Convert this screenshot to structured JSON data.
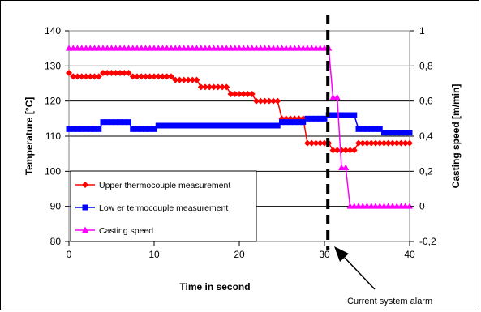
{
  "chart_data": {
    "type": "line",
    "title": "",
    "xlabel": "Time in second",
    "ylabel": "Temperature [°C]",
    "y2label": "Casting speed [m/min]",
    "xlim": [
      0,
      40
    ],
    "ylim": [
      80,
      140
    ],
    "y2lim": [
      -0.2,
      1
    ],
    "xticks": [
      "0",
      "10",
      "20",
      "30",
      "40"
    ],
    "yticks": [
      "80",
      "90",
      "100",
      "110",
      "120",
      "130",
      "140"
    ],
    "y2ticks": [
      "-0,2",
      "0",
      "0,2",
      "0,4",
      "0,6",
      "0,8",
      "1"
    ],
    "grid": "horizontal",
    "legend_position": "lower-left",
    "series": [
      {
        "name": "Upper thermocouple measurement",
        "axis": "left",
        "color": "#ff0000",
        "marker": "diamond",
        "x": [
          0,
          0.5,
          1,
          1.5,
          2,
          2.5,
          3,
          3.5,
          4,
          4.5,
          5,
          5.5,
          6,
          6.5,
          7,
          7.5,
          8,
          8.5,
          9,
          9.5,
          10,
          10.5,
          11,
          11.5,
          12,
          12.5,
          13,
          13.5,
          14,
          14.5,
          15,
          15.5,
          16,
          16.5,
          17,
          17.5,
          18,
          18.5,
          19,
          19.5,
          20,
          20.5,
          21,
          21.5,
          22,
          22.5,
          23,
          23.5,
          24,
          24.5,
          25,
          25.5,
          26,
          26.5,
          27,
          27.5,
          28,
          28.5,
          29,
          29.5,
          30,
          30.5,
          31,
          31.5,
          32,
          32.5,
          33,
          33.5,
          34,
          34.5,
          35,
          35.5,
          36,
          36.5,
          37,
          37.5,
          38,
          38.5,
          39,
          39.5,
          40
        ],
        "y": [
          128,
          127,
          127,
          127,
          127,
          127,
          127,
          127,
          128,
          128,
          128,
          128,
          128,
          128,
          128,
          127,
          127,
          127,
          127,
          127,
          127,
          127,
          127,
          127,
          127,
          126,
          126,
          126,
          126,
          126,
          126,
          124,
          124,
          124,
          124,
          124,
          124,
          124,
          122,
          122,
          122,
          122,
          122,
          122,
          120,
          120,
          120,
          120,
          120,
          120,
          115,
          115,
          115,
          115,
          115,
          115,
          108,
          108,
          108,
          108,
          108,
          108,
          106,
          106,
          106,
          106,
          106,
          106,
          108,
          108,
          108,
          108,
          108,
          108,
          108,
          108,
          108,
          108,
          108,
          108,
          108
        ]
      },
      {
        "name": "Low er termocouple measurement",
        "axis": "left",
        "color": "#0000ff",
        "marker": "square",
        "x": [
          0,
          0.5,
          1,
          1.5,
          2,
          2.5,
          3,
          3.5,
          4,
          4.5,
          5,
          5.5,
          6,
          6.5,
          7,
          7.5,
          8,
          8.5,
          9,
          9.5,
          10,
          10.5,
          11,
          11.5,
          12,
          12.5,
          13,
          13.5,
          14,
          14.5,
          15,
          15.5,
          16,
          16.5,
          17,
          17.5,
          18,
          18.5,
          19,
          19.5,
          20,
          20.5,
          21,
          21.5,
          22,
          22.5,
          23,
          23.5,
          24,
          24.5,
          25,
          25.5,
          26,
          26.5,
          27,
          27.5,
          28,
          28.5,
          29,
          29.5,
          30,
          30.5,
          31,
          31.5,
          32,
          32.5,
          33,
          33.5,
          34,
          34.5,
          35,
          35.5,
          36,
          36.5,
          37,
          37.5,
          38,
          38.5,
          39,
          39.5,
          40
        ],
        "y": [
          112,
          112,
          112,
          112,
          112,
          112,
          112,
          112,
          114,
          114,
          114,
          114,
          114,
          114,
          114,
          112,
          112,
          112,
          112,
          112,
          112,
          113,
          113,
          113,
          113,
          113,
          113,
          113,
          113,
          113,
          113,
          113,
          113,
          113,
          113,
          113,
          113,
          113,
          113,
          113,
          113,
          113,
          113,
          113,
          113,
          113,
          113,
          113,
          113,
          113,
          114,
          114,
          114,
          114,
          114,
          114,
          115,
          115,
          115,
          115,
          115,
          116,
          116,
          116,
          116,
          116,
          116,
          116,
          112,
          112,
          112,
          112,
          112,
          112,
          111,
          111,
          111,
          111,
          111,
          111,
          111
        ]
      },
      {
        "name": "Casting speed",
        "axis": "right",
        "color": "#ff00ff",
        "marker": "triangle",
        "x": [
          0,
          0.5,
          1,
          1.5,
          2,
          2.5,
          3,
          3.5,
          4,
          4.5,
          5,
          5.5,
          6,
          6.5,
          7,
          7.5,
          8,
          8.5,
          9,
          9.5,
          10,
          10.5,
          11,
          11.5,
          12,
          12.5,
          13,
          13.5,
          14,
          14.5,
          15,
          15.5,
          16,
          16.5,
          17,
          17.5,
          18,
          18.5,
          19,
          19.5,
          20,
          20.5,
          21,
          21.5,
          22,
          22.5,
          23,
          23.5,
          24,
          24.5,
          25,
          25.5,
          26,
          26.5,
          27,
          27.5,
          28,
          28.5,
          29,
          29.5,
          30,
          30.5,
          31,
          31.5,
          32,
          32.5,
          33,
          33.5,
          34,
          34.5,
          35,
          35.5,
          36,
          36.5,
          37,
          37.5,
          38,
          38.5,
          39,
          39.5,
          40
        ],
        "y": [
          0.9,
          0.9,
          0.9,
          0.9,
          0.9,
          0.9,
          0.9,
          0.9,
          0.9,
          0.9,
          0.9,
          0.9,
          0.9,
          0.9,
          0.9,
          0.9,
          0.9,
          0.9,
          0.9,
          0.9,
          0.9,
          0.9,
          0.9,
          0.9,
          0.9,
          0.9,
          0.9,
          0.9,
          0.9,
          0.9,
          0.9,
          0.9,
          0.9,
          0.9,
          0.9,
          0.9,
          0.9,
          0.9,
          0.9,
          0.9,
          0.9,
          0.9,
          0.9,
          0.9,
          0.9,
          0.9,
          0.9,
          0.9,
          0.9,
          0.9,
          0.9,
          0.9,
          0.9,
          0.9,
          0.9,
          0.9,
          0.9,
          0.9,
          0.9,
          0.9,
          0.9,
          0.9,
          0.62,
          0.62,
          0.22,
          0.22,
          0,
          0,
          0,
          0,
          0,
          0,
          0,
          0,
          0,
          0,
          0,
          0,
          0,
          0,
          0
        ]
      }
    ],
    "marker_line": {
      "x": 30.4,
      "style": "dashed",
      "color": "#000000"
    },
    "annotations": [
      {
        "text": "Current system alarm",
        "target_x": 30.4,
        "target_y": 80
      }
    ]
  }
}
